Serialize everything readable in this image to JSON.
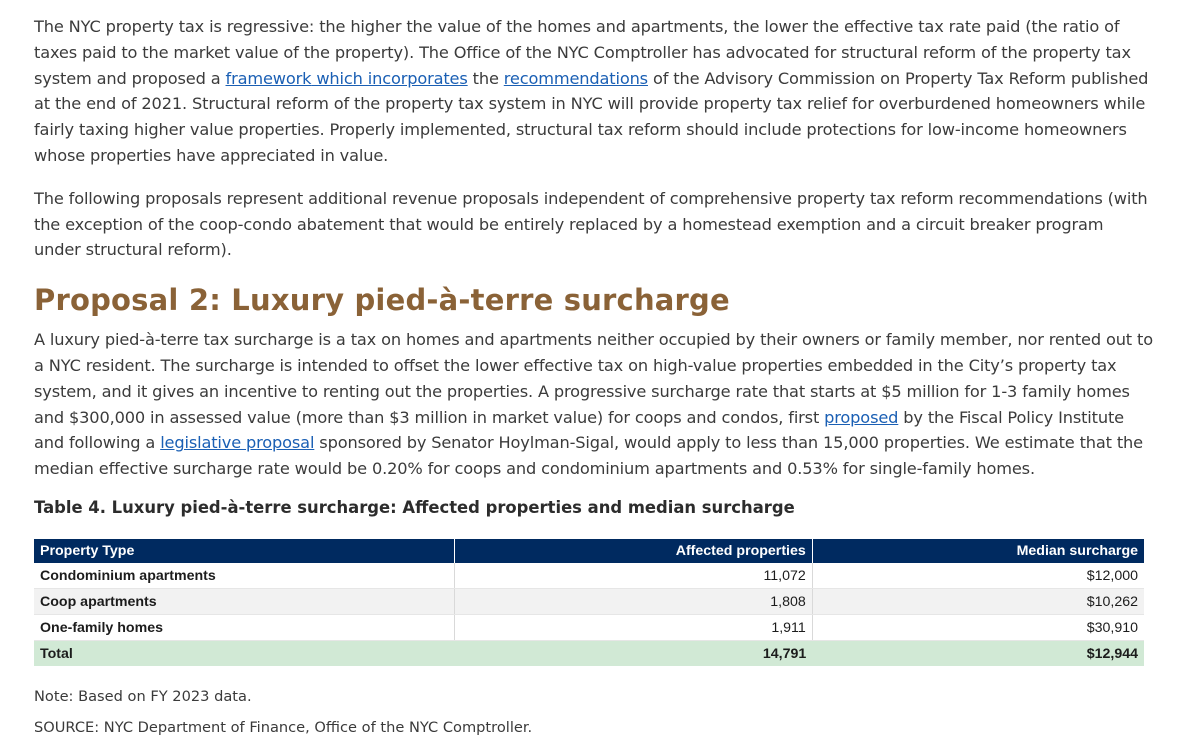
{
  "intro": {
    "p1_a": "The NYC property tax is regressive: the higher the value of the homes and apartments, the lower the effective tax rate paid (the ratio of taxes paid to the market value of the property). The Office of the NYC Comptroller has advocated for structural reform of the property tax system and proposed a ",
    "p1_link1": "framework",
    "p1_link2": " which incorporates",
    "p1_b": " the ",
    "p1_link3": "recommendations",
    "p1_c": " of the Advisory Commission on Property Tax Reform published at the end of 2021. Structural reform of the property tax system in NYC will provide property tax relief for overburdened homeowners while fairly taxing higher value properties. Properly implemented, structural tax reform should include protections for low-income homeowners whose properties have appreciated in value.",
    "p2": "The following proposals represent additional revenue proposals independent of comprehensive property tax reform recommendations (with the exception of the coop-condo abatement that would be entirely replaced by a homestead exemption and a circuit breaker program under structural reform)."
  },
  "section": {
    "heading": "Proposal 2: Luxury pied-à-terre surcharge",
    "p_a": "A luxury pied-à-terre tax surcharge is a tax on homes and apartments neither occupied by their owners or family member, nor rented out to a NYC resident. The surcharge is intended to offset the lower effective tax on high-value properties embedded in the City’s property tax system, and it gives an incentive to renting out the properties. A progressive surcharge rate that starts at $5 million for 1-3 family homes and $300,000 in assessed value (more than $3 million in market value) for coops and condos, first ",
    "p_link1": "proposed",
    "p_b": " by the Fiscal Policy Institute and following a ",
    "p_link2": "legislative proposal",
    "p_c": " sponsored by Senator Hoylman-Sigal, would apply to less than 15,000 properties. We estimate that the median effective surcharge rate would be 0.20% for coops and condominium apartments and 0.53% for single-family homes."
  },
  "table": {
    "caption": "Table 4. Luxury pied-à-terre surcharge: Affected properties and median surcharge",
    "headers": [
      "Property Type",
      "Affected properties",
      "Median surcharge"
    ],
    "rows": [
      [
        "Condominium apartments",
        "11,072",
        "$12,000"
      ],
      [
        "Coop apartments",
        "1,808",
        "$10,262"
      ],
      [
        "One-family homes",
        "1,911",
        "$30,910"
      ]
    ],
    "total": [
      "Total",
      "14,791",
      "$12,944"
    ]
  },
  "note": "Note: Based on FY 2023 data.",
  "source": "SOURCE: NYC Department of Finance, Office of the NYC Comptroller.",
  "colors": {
    "heading": "#8a6237",
    "link": "#1a5fb4",
    "table_header": "#002a60",
    "total_row": "#d1e9d5"
  }
}
